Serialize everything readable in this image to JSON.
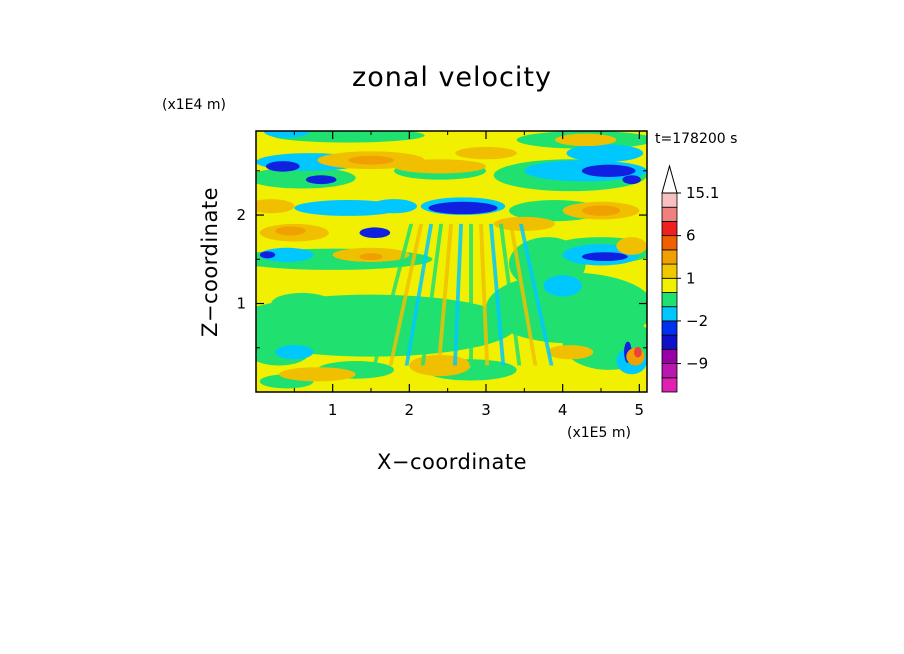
{
  "chart_data": {
    "type": "heatmap",
    "title": "zonal velocity",
    "xlabel": "X−coordinate",
    "ylabel": "Z−coordinate",
    "x_unit": "(x1E5 m)",
    "y_unit": "(x1E4 m)",
    "time_label": "t=178200 s",
    "xlim": [
      0,
      5.1
    ],
    "ylim": [
      0,
      2.95
    ],
    "x_ticks": [
      {
        "value": 1,
        "label": "1"
      },
      {
        "value": 2,
        "label": "2"
      },
      {
        "value": 3,
        "label": "3"
      },
      {
        "value": 4,
        "label": "4"
      },
      {
        "value": 5,
        "label": "5"
      }
    ],
    "y_ticks": [
      {
        "value": 1,
        "label": "1"
      },
      {
        "value": 2,
        "label": "2"
      }
    ],
    "colorbar": {
      "colors": [
        "#e020b0",
        "#b818b0",
        "#9800a8",
        "#1010c8",
        "#0030f0",
        "#00c8ff",
        "#20e070",
        "#f0f000",
        "#f0c800",
        "#f0a000",
        "#f06000",
        "#f02020",
        "#f08080",
        "#f8c0c0"
      ],
      "labels": [
        {
          "value": 15.1,
          "label": "15.1"
        },
        {
          "value": 6,
          "label": "6"
        },
        {
          "value": 1,
          "label": "1"
        },
        {
          "value": -2,
          "label": "−2"
        },
        {
          "value": -9,
          "label": "−9"
        }
      ]
    },
    "field_colors": {
      "strong_negative": "#1020e0",
      "negative": "#00c8ff",
      "weak_negative": "#20e070",
      "near_zero": "#f0f000",
      "positive": "#f0c000",
      "strong_positive": "#f0a000",
      "extreme": "#f04040"
    }
  }
}
